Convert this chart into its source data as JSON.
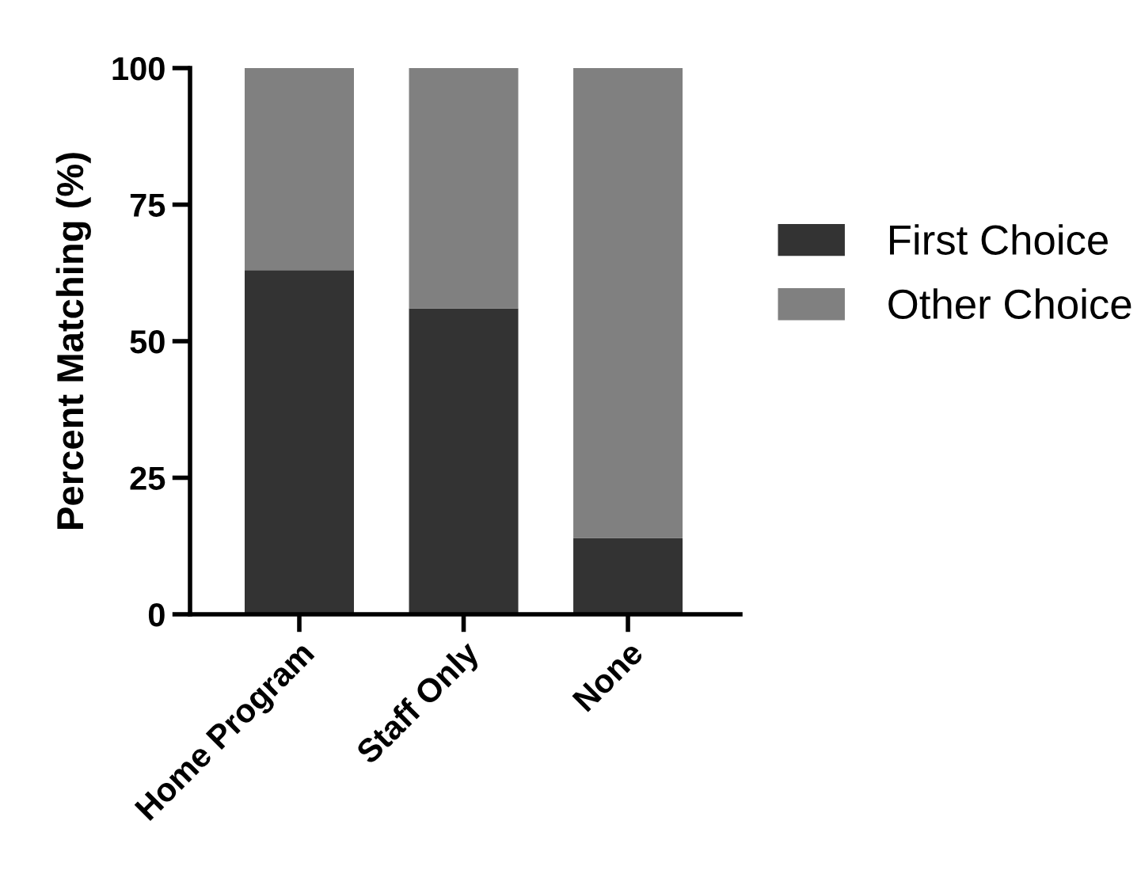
{
  "chart_data": {
    "type": "bar",
    "ylabel": "Percent Matching (%)",
    "categories": [
      "Home Program",
      "Staff Only",
      "None"
    ],
    "stacked": true,
    "series": [
      {
        "name": "First Choice",
        "color": "#333333",
        "values": [
          63,
          56,
          14
        ]
      },
      {
        "name": "Other Choice",
        "color": "#808080",
        "values": [
          37,
          44,
          86
        ]
      }
    ],
    "ylim": [
      0,
      100
    ],
    "yticks": [
      0,
      25,
      50,
      75,
      100
    ],
    "grid": false,
    "legend": "right"
  }
}
